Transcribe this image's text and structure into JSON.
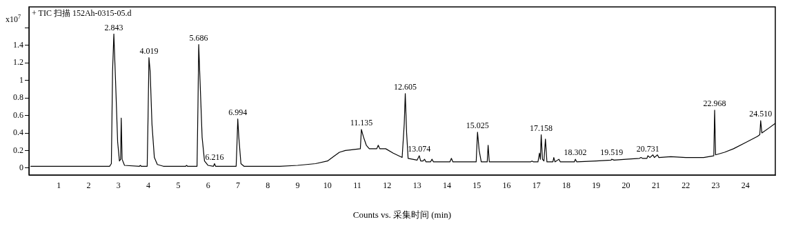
{
  "chart_data": {
    "type": "line",
    "title": "+ TIC 扫描 152Ah-0315-05.d",
    "xlabel": "Counts vs. 采集时间 (min)",
    "ylabel": "x10$^{7}$",
    "xlim": [
      0,
      25
    ],
    "ylim": [
      -0.08,
      1.84
    ],
    "xticks": [
      1,
      2,
      3,
      4,
      5,
      6,
      7,
      8,
      9,
      10,
      11,
      12,
      13,
      14,
      15,
      16,
      17,
      18,
      19,
      20,
      21,
      22,
      23,
      24
    ],
    "yticks": [
      0,
      0.2,
      0.4,
      0.6,
      0.8,
      1,
      1.2,
      1.4,
      {
        "value": 1.6,
        "label": null
      }
    ],
    "grid": false,
    "series": [
      {
        "color": "#000000",
        "x": [
          0.05,
          2.7,
          2.76,
          2.8,
          2.843,
          2.9,
          2.97,
          3.03,
          3.07,
          3.09,
          3.12,
          3.2,
          3.7,
          3.73,
          3.76,
          3.96,
          3.99,
          4.019,
          4.06,
          4.12,
          4.2,
          4.3,
          4.5,
          5.25,
          5.28,
          5.31,
          5.63,
          5.66,
          5.686,
          5.73,
          5.8,
          5.88,
          6.0,
          6.18,
          6.216,
          6.25,
          6.94,
          6.97,
          6.994,
          7.03,
          7.1,
          7.2,
          8.4,
          9.0,
          9.6,
          10.0,
          10.2,
          10.4,
          10.6,
          10.85,
          11.1,
          11.135,
          11.2,
          11.3,
          11.4,
          11.65,
          11.7,
          11.75,
          11.95,
          12.2,
          12.5,
          12.57,
          12.605,
          12.65,
          12.7,
          13.0,
          13.074,
          13.12,
          13.2,
          13.25,
          13.3,
          13.45,
          13.5,
          13.55,
          14.1,
          14.15,
          14.2,
          14.98,
          15.025,
          15.08,
          15.15,
          15.35,
          15.38,
          15.42,
          16.8,
          16.85,
          16.9,
          17.05,
          17.1,
          17.13,
          17.158,
          17.2,
          17.25,
          17.3,
          17.35,
          17.55,
          17.58,
          17.62,
          17.75,
          17.8,
          18.27,
          18.302,
          18.35,
          19.0,
          19.5,
          19.519,
          19.6,
          20.0,
          20.45,
          20.5,
          20.55,
          20.7,
          20.731,
          20.8,
          20.9,
          20.95,
          21.05,
          21.1,
          21.5,
          22.0,
          22.6,
          22.94,
          22.968,
          23.0,
          23.3,
          23.6,
          24.0,
          24.4,
          24.48,
          24.51,
          24.55,
          24.8,
          25.0
        ],
        "values": [
          0.02,
          0.02,
          0.05,
          1.1,
          1.53,
          1.0,
          0.3,
          0.08,
          0.1,
          0.57,
          0.1,
          0.03,
          0.02,
          0.03,
          0.02,
          0.02,
          0.6,
          1.26,
          1.1,
          0.5,
          0.12,
          0.04,
          0.02,
          0.02,
          0.03,
          0.02,
          0.02,
          0.7,
          1.41,
          1.0,
          0.35,
          0.08,
          0.03,
          0.02,
          0.05,
          0.02,
          0.02,
          0.3,
          0.56,
          0.35,
          0.05,
          0.02,
          0.02,
          0.03,
          0.05,
          0.08,
          0.13,
          0.18,
          0.2,
          0.21,
          0.22,
          0.44,
          0.36,
          0.26,
          0.22,
          0.22,
          0.26,
          0.22,
          0.22,
          0.17,
          0.12,
          0.5,
          0.85,
          0.4,
          0.11,
          0.09,
          0.14,
          0.08,
          0.08,
          0.1,
          0.07,
          0.07,
          0.1,
          0.07,
          0.07,
          0.11,
          0.07,
          0.07,
          0.41,
          0.2,
          0.07,
          0.07,
          0.26,
          0.07,
          0.07,
          0.08,
          0.07,
          0.07,
          0.17,
          0.1,
          0.38,
          0.1,
          0.08,
          0.33,
          0.07,
          0.07,
          0.12,
          0.07,
          0.1,
          0.07,
          0.07,
          0.1,
          0.07,
          0.08,
          0.09,
          0.1,
          0.09,
          0.1,
          0.11,
          0.12,
          0.11,
          0.11,
          0.14,
          0.12,
          0.15,
          0.12,
          0.15,
          0.12,
          0.13,
          0.12,
          0.12,
          0.14,
          0.66,
          0.15,
          0.18,
          0.22,
          0.29,
          0.36,
          0.38,
          0.54,
          0.4,
          0.46,
          0.51
        ]
      }
    ],
    "annotations": [
      {
        "text": "2.843",
        "x": 2.843,
        "y": 1.53
      },
      {
        "text": "4.019",
        "x": 4.019,
        "y": 1.26
      },
      {
        "text": "5.686",
        "x": 5.686,
        "y": 1.41
      },
      {
        "text": "6.216",
        "x": 6.216,
        "y": 0.05
      },
      {
        "text": "6.994",
        "x": 6.994,
        "y": 0.56
      },
      {
        "text": "11.135",
        "x": 11.135,
        "y": 0.44
      },
      {
        "text": "12.605",
        "x": 12.605,
        "y": 0.85
      },
      {
        "text": "13.074",
        "x": 13.074,
        "y": 0.14
      },
      {
        "text": "15.025",
        "x": 15.025,
        "y": 0.41
      },
      {
        "text": "17.158",
        "x": 17.158,
        "y": 0.38
      },
      {
        "text": "18.302",
        "x": 18.302,
        "y": 0.1
      },
      {
        "text": "19.519",
        "x": 19.519,
        "y": 0.1
      },
      {
        "text": "20.731",
        "x": 20.731,
        "y": 0.14
      },
      {
        "text": "22.968",
        "x": 22.968,
        "y": 0.66
      },
      {
        "text": "24.510",
        "x": 24.51,
        "y": 0.54
      }
    ]
  }
}
